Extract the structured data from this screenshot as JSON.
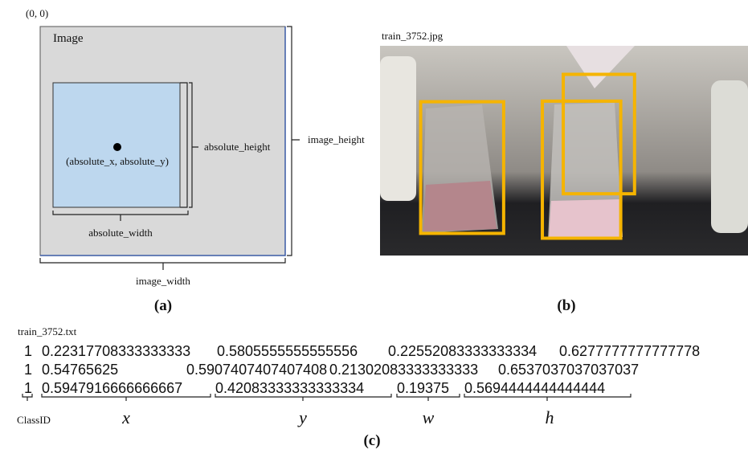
{
  "panel_a": {
    "origin": "(0, 0)",
    "image_label": "Image",
    "point_label": "(absolute_x, absolute_y)",
    "absolute_height": "absolute_height",
    "image_height": "image_height",
    "absolute_width": "absolute_width",
    "image_width": "image_width",
    "caption": "(a)"
  },
  "panel_b": {
    "filename": "train_3752.jpg",
    "caption": "(b)"
  },
  "panel_c": {
    "filename": "train_3752.txt",
    "rows": [
      [
        "1",
        "0.22317708333333333",
        "0.5805555555555556",
        "0.22552083333333334",
        "0.6277777777777778"
      ],
      [
        "1",
        "0.54765625",
        "0.5907407407407408",
        "0.21302083333333333",
        "0.6537037037037037"
      ],
      [
        "1",
        "0.5947916666666667",
        "0.42083333333333334",
        "0.19375",
        "0.5694444444444444"
      ]
    ],
    "labels": [
      "ClassID",
      "x",
      "y",
      "w",
      "h"
    ],
    "caption": "(c)"
  }
}
